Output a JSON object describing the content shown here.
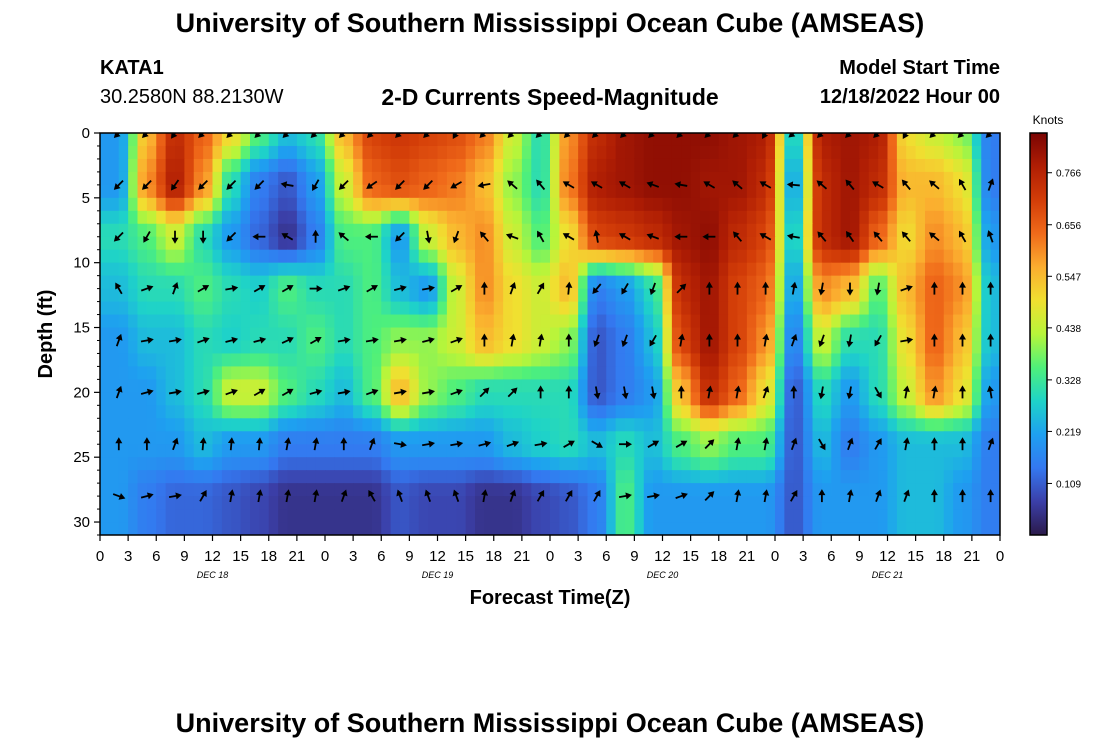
{
  "header": {
    "title": "University of Southern Mississippi Ocean Cube (AMSEAS)",
    "station": "KATA1",
    "coords": "30.2580N  88.2130W",
    "subtitle": "2-D Currents Speed-Magnitude",
    "start_label": "Model Start Time",
    "start_value": "12/18/2022 Hour 00"
  },
  "footer": {
    "title": "University of Southern Mississippi Ocean Cube (AMSEAS)"
  },
  "chart_data": {
    "type": "heatmap",
    "title": "2-D Currents Speed-Magnitude",
    "xlabel": "Forecast Time(Z)",
    "ylabel": "Depth (ft)",
    "x_range": [
      0,
      96
    ],
    "ylim": [
      0,
      31
    ],
    "x_tick_labels": [
      "0",
      "3",
      "6",
      "9",
      "12",
      "15",
      "18",
      "21",
      "0",
      "3",
      "6",
      "9",
      "12",
      "15",
      "18",
      "21",
      "0",
      "3",
      "6",
      "9",
      "12",
      "15",
      "18",
      "21",
      "0",
      "3",
      "6",
      "9",
      "12",
      "15",
      "18",
      "21",
      "0"
    ],
    "y_ticks": [
      0,
      5,
      10,
      15,
      20,
      25,
      30
    ],
    "day_labels": [
      {
        "label": "DEC 18",
        "hour": 12
      },
      {
        "label": "DEC 19",
        "hour": 36
      },
      {
        "label": "DEC 20",
        "hour": 60
      },
      {
        "label": "DEC 21",
        "hour": 84
      }
    ],
    "colorbar": {
      "unit": "Knots",
      "ticks": [
        0.109,
        0.219,
        0.328,
        0.438,
        0.547,
        0.656,
        0.766
      ],
      "range": [
        0.0,
        0.85
      ],
      "colors": [
        "#2b1a4a",
        "#3b3fa8",
        "#3478f0",
        "#1ea0f0",
        "#1ed3c8",
        "#4ff07a",
        "#b7f53a",
        "#f0e030",
        "#fbad2f",
        "#f06a1a",
        "#d33d08",
        "#b01e04",
        "#7a0403"
      ]
    },
    "depth_levels_ft": [
      0,
      4,
      8,
      12,
      16,
      20,
      24,
      28
    ],
    "arrow_hours": [
      2,
      5,
      8,
      11,
      14,
      17,
      20,
      23,
      26,
      29,
      32,
      35,
      38,
      41,
      44,
      47,
      50,
      53,
      56,
      59,
      62,
      65,
      68,
      71,
      74,
      77,
      80,
      83,
      86,
      89,
      92,
      95
    ],
    "speed_knots": [
      [
        0.2,
        0.55,
        0.75,
        0.65,
        0.5,
        0.35,
        0.25,
        0.3,
        0.55,
        0.7,
        0.72,
        0.7,
        0.68,
        0.62,
        0.45,
        0.3,
        0.6,
        0.75,
        0.8,
        0.82,
        0.82,
        0.82,
        0.8,
        0.78,
        0.25,
        0.78,
        0.8,
        0.78,
        0.5,
        0.45,
        0.4,
        0.15
      ],
      [
        0.2,
        0.6,
        0.78,
        0.6,
        0.3,
        0.15,
        0.1,
        0.2,
        0.45,
        0.65,
        0.68,
        0.65,
        0.62,
        0.55,
        0.4,
        0.3,
        0.62,
        0.78,
        0.8,
        0.82,
        0.82,
        0.8,
        0.8,
        0.75,
        0.2,
        0.75,
        0.8,
        0.75,
        0.55,
        0.55,
        0.5,
        0.15
      ],
      [
        0.3,
        0.35,
        0.45,
        0.3,
        0.2,
        0.12,
        0.05,
        0.15,
        0.35,
        0.35,
        0.2,
        0.45,
        0.55,
        0.6,
        0.45,
        0.35,
        0.5,
        0.7,
        0.72,
        0.75,
        0.8,
        0.82,
        0.75,
        0.7,
        0.25,
        0.75,
        0.8,
        0.65,
        0.5,
        0.6,
        0.55,
        0.2
      ],
      [
        0.25,
        0.3,
        0.3,
        0.35,
        0.3,
        0.28,
        0.35,
        0.3,
        0.3,
        0.35,
        0.25,
        0.2,
        0.45,
        0.6,
        0.5,
        0.45,
        0.55,
        0.15,
        0.2,
        0.3,
        0.75,
        0.8,
        0.7,
        0.65,
        0.2,
        0.6,
        0.55,
        0.35,
        0.55,
        0.65,
        0.6,
        0.25
      ],
      [
        0.2,
        0.25,
        0.25,
        0.3,
        0.28,
        0.3,
        0.3,
        0.35,
        0.3,
        0.35,
        0.4,
        0.4,
        0.45,
        0.55,
        0.5,
        0.45,
        0.4,
        0.1,
        0.15,
        0.25,
        0.7,
        0.8,
        0.7,
        0.6,
        0.15,
        0.45,
        0.3,
        0.3,
        0.5,
        0.65,
        0.55,
        0.25
      ],
      [
        0.2,
        0.2,
        0.25,
        0.3,
        0.45,
        0.45,
        0.35,
        0.3,
        0.25,
        0.35,
        0.55,
        0.4,
        0.35,
        0.3,
        0.3,
        0.3,
        0.3,
        0.1,
        0.15,
        0.2,
        0.55,
        0.75,
        0.65,
        0.5,
        0.1,
        0.3,
        0.2,
        0.3,
        0.45,
        0.6,
        0.5,
        0.2
      ],
      [
        0.2,
        0.2,
        0.2,
        0.25,
        0.2,
        0.2,
        0.15,
        0.15,
        0.15,
        0.15,
        0.2,
        0.2,
        0.2,
        0.2,
        0.25,
        0.28,
        0.3,
        0.25,
        0.3,
        0.25,
        0.35,
        0.4,
        0.35,
        0.35,
        0.1,
        0.25,
        0.15,
        0.2,
        0.25,
        0.25,
        0.25,
        0.15
      ],
      [
        0.2,
        0.15,
        0.12,
        0.12,
        0.1,
        0.08,
        0.05,
        0.05,
        0.05,
        0.05,
        0.1,
        0.08,
        0.08,
        0.05,
        0.05,
        0.08,
        0.1,
        0.15,
        0.35,
        0.2,
        0.2,
        0.2,
        0.2,
        0.2,
        0.1,
        0.2,
        0.2,
        0.2,
        0.25,
        0.25,
        0.2,
        0.15
      ]
    ],
    "direction_deg": [
      [
        225,
        225,
        215,
        225,
        225,
        225,
        225,
        225,
        225,
        225,
        225,
        225,
        210,
        225,
        225,
        225,
        225,
        225,
        225,
        225,
        225,
        225,
        225,
        210,
        230,
        225,
        225,
        225,
        210,
        225,
        225,
        225
      ],
      [
        225,
        225,
        215,
        225,
        225,
        225,
        280,
        210,
        225,
        235,
        225,
        225,
        240,
        260,
        310,
        320,
        300,
        300,
        300,
        290,
        280,
        300,
        310,
        300,
        275,
        310,
        320,
        300,
        320,
        310,
        330,
        20
      ],
      [
        225,
        210,
        180,
        180,
        225,
        270,
        300,
        0,
        310,
        270,
        225,
        170,
        200,
        320,
        290,
        330,
        300,
        350,
        300,
        290,
        270,
        270,
        320,
        300,
        280,
        320,
        325,
        320,
        320,
        310,
        330,
        340
      ],
      [
        330,
        70,
        20,
        60,
        80,
        60,
        60,
        90,
        70,
        60,
        75,
        80,
        60,
        0,
        20,
        30,
        5,
        220,
        210,
        200,
        45,
        0,
        0,
        0,
        10,
        190,
        180,
        190,
        70,
        0,
        0,
        0
      ],
      [
        20,
        80,
        80,
        70,
        75,
        75,
        65,
        60,
        80,
        80,
        80,
        75,
        70,
        0,
        10,
        10,
        0,
        200,
        200,
        210,
        10,
        0,
        0,
        10,
        20,
        200,
        190,
        210,
        80,
        0,
        0,
        0
      ],
      [
        20,
        75,
        80,
        75,
        70,
        60,
        60,
        75,
        80,
        70,
        80,
        80,
        70,
        45,
        45,
        0,
        0,
        170,
        170,
        170,
        0,
        10,
        10,
        20,
        0,
        190,
        190,
        150,
        10,
        10,
        0,
        350
      ],
      [
        0,
        0,
        20,
        5,
        5,
        5,
        10,
        10,
        0,
        20,
        100,
        80,
        80,
        75,
        70,
        80,
        60,
        120,
        90,
        60,
        60,
        45,
        10,
        10,
        20,
        150,
        20,
        30,
        10,
        0,
        0,
        20
      ],
      [
        110,
        75,
        80,
        30,
        10,
        10,
        10,
        10,
        20,
        330,
        340,
        340,
        340,
        10,
        20,
        30,
        30,
        30,
        80,
        80,
        70,
        45,
        10,
        10,
        30,
        0,
        10,
        20,
        20,
        0,
        0,
        0
      ]
    ]
  }
}
